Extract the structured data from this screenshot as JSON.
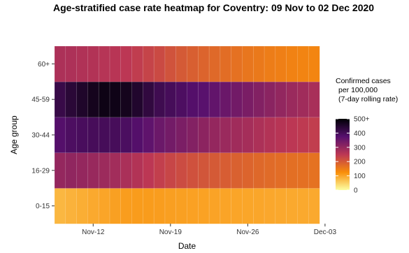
{
  "chart_data": {
    "type": "heatmap",
    "title": "Age-stratified case rate heatmap for Coventry: 09 Nov to 02 Dec 2020",
    "xlabel": "Date",
    "ylabel": "Age group",
    "x": [
      "2020-11-09",
      "2020-11-10",
      "2020-11-11",
      "2020-11-12",
      "2020-11-13",
      "2020-11-14",
      "2020-11-15",
      "2020-11-16",
      "2020-11-17",
      "2020-11-18",
      "2020-11-19",
      "2020-11-20",
      "2020-11-21",
      "2020-11-22",
      "2020-11-23",
      "2020-11-24",
      "2020-11-25",
      "2020-11-26",
      "2020-11-27",
      "2020-11-28",
      "2020-11-29",
      "2020-11-30",
      "2020-12-01",
      "2020-12-02"
    ],
    "x_ticks": [
      "Nov-12",
      "Nov-19",
      "Nov-26",
      "Dec-03"
    ],
    "categories": [
      "0-15",
      "16-29",
      "30-44",
      "45-59",
      "60+"
    ],
    "series": [
      {
        "name": "0-15",
        "values": [
          80,
          85,
          90,
          95,
          100,
          105,
          108,
          110,
          110,
          108,
          106,
          105,
          104,
          103,
          102,
          101,
          100,
          99,
          98,
          97,
          96,
          95,
          95,
          95
        ]
      },
      {
        "name": "16-29",
        "values": [
          300,
          305,
          300,
          295,
          290,
          282,
          272,
          262,
          250,
          238,
          228,
          220,
          212,
          206,
          200,
          195,
          190,
          185,
          180,
          176,
          173,
          170,
          168,
          165
        ]
      },
      {
        "name": "30-44",
        "values": [
          380,
          390,
          395,
          398,
          400,
          398,
          392,
          380,
          365,
          350,
          340,
          330,
          320,
          310,
          300,
          292,
          285,
          278,
          270,
          262,
          256,
          250,
          245,
          240
        ]
      },
      {
        "name": "45-59",
        "values": [
          420,
          440,
          455,
          470,
          480,
          478,
          470,
          452,
          430,
          410,
          400,
          390,
          380,
          372,
          362,
          352,
          342,
          332,
          322,
          312,
          302,
          292,
          285,
          275
        ]
      },
      {
        "name": "60+",
        "values": [
          270,
          268,
          265,
          262,
          258,
          255,
          250,
          242,
          232,
          222,
          210,
          200,
          192,
          185,
          178,
          172,
          166,
          160,
          155,
          150,
          146,
          142,
          140,
          138
        ]
      }
    ],
    "colorbar": {
      "title": [
        "Confirmed cases",
        "per 100,000",
        "(7-day rolling rate)"
      ],
      "range": [
        0,
        500
      ],
      "tick_values": [
        0,
        100,
        200,
        300,
        400,
        500
      ],
      "tick_labels": [
        "0",
        "100",
        "200",
        "300",
        "400",
        "500+"
      ],
      "palette": [
        "#fcffa4",
        "#f98e09",
        "#bc3754",
        "#57106e",
        "#000004"
      ]
    },
    "background": "#ebebeb",
    "grid": true,
    "legend_position": "right"
  }
}
